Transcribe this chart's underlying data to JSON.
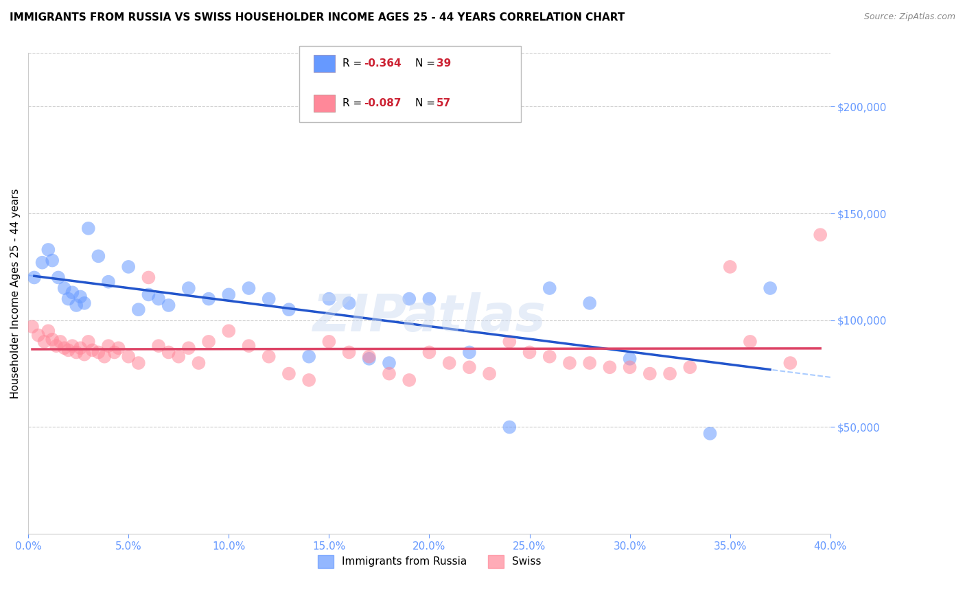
{
  "title": "IMMIGRANTS FROM RUSSIA VS SWISS HOUSEHOLDER INCOME AGES 25 - 44 YEARS CORRELATION CHART",
  "source": "Source: ZipAtlas.com",
  "ylabel": "Householder Income Ages 25 - 44 years",
  "xlabel_ticks": [
    "0.0%",
    "5.0%",
    "10.0%",
    "15.0%",
    "20.0%",
    "25.0%",
    "30.0%",
    "35.0%",
    "40.0%"
  ],
  "xlabel_vals": [
    0.0,
    5.0,
    10.0,
    15.0,
    20.0,
    25.0,
    30.0,
    35.0,
    40.0
  ],
  "ytick_labels": [
    "$50,000",
    "$100,000",
    "$150,000",
    "$200,000"
  ],
  "ytick_vals": [
    50000,
    100000,
    150000,
    200000
  ],
  "xlim": [
    0.0,
    40.0
  ],
  "ylim": [
    0,
    225000
  ],
  "legend_russia_R": "-0.364",
  "legend_russia_N": "39",
  "legend_swiss_R": "-0.087",
  "legend_swiss_N": "57",
  "russia_color": "#6699ff",
  "swiss_color": "#ff8899",
  "russia_line_color": "#2255cc",
  "swiss_line_color": "#dd4466",
  "russia_dashed_color": "#aaccff",
  "axis_color": "#6699ff",
  "grid_color": "#cccccc",
  "russia_x": [
    0.3,
    0.7,
    1.0,
    1.2,
    1.5,
    1.8,
    2.0,
    2.2,
    2.4,
    2.6,
    2.8,
    3.0,
    3.5,
    4.0,
    5.0,
    5.5,
    6.0,
    6.5,
    7.0,
    8.0,
    9.0,
    10.0,
    11.0,
    12.0,
    13.0,
    14.0,
    15.0,
    16.0,
    17.0,
    18.0,
    19.0,
    20.0,
    22.0,
    24.0,
    26.0,
    28.0,
    30.0,
    34.0,
    37.0
  ],
  "russia_y": [
    120000,
    127000,
    133000,
    128000,
    120000,
    115000,
    110000,
    113000,
    107000,
    111000,
    108000,
    143000,
    130000,
    118000,
    125000,
    105000,
    112000,
    110000,
    107000,
    115000,
    110000,
    112000,
    115000,
    110000,
    105000,
    83000,
    110000,
    108000,
    82000,
    80000,
    110000,
    110000,
    85000,
    50000,
    115000,
    108000,
    82000,
    47000,
    115000
  ],
  "swiss_x": [
    0.2,
    0.5,
    0.8,
    1.0,
    1.2,
    1.4,
    1.6,
    1.8,
    2.0,
    2.2,
    2.4,
    2.6,
    2.8,
    3.0,
    3.2,
    3.5,
    3.8,
    4.0,
    4.3,
    4.5,
    5.0,
    5.5,
    6.0,
    6.5,
    7.0,
    7.5,
    8.0,
    8.5,
    9.0,
    10.0,
    11.0,
    12.0,
    13.0,
    14.0,
    15.0,
    16.0,
    17.0,
    18.0,
    19.0,
    20.0,
    21.0,
    22.0,
    23.0,
    24.0,
    25.0,
    26.0,
    27.0,
    28.0,
    29.0,
    30.0,
    31.0,
    32.0,
    33.0,
    35.0,
    36.0,
    38.0,
    39.5
  ],
  "swiss_y": [
    97000,
    93000,
    90000,
    95000,
    91000,
    88000,
    90000,
    87000,
    86000,
    88000,
    85000,
    87000,
    84000,
    90000,
    86000,
    85000,
    83000,
    88000,
    85000,
    87000,
    83000,
    80000,
    120000,
    88000,
    85000,
    83000,
    87000,
    80000,
    90000,
    95000,
    88000,
    83000,
    75000,
    72000,
    90000,
    85000,
    83000,
    75000,
    72000,
    85000,
    80000,
    78000,
    75000,
    90000,
    85000,
    83000,
    80000,
    80000,
    78000,
    78000,
    75000,
    75000,
    78000,
    125000,
    90000,
    80000,
    140000
  ]
}
